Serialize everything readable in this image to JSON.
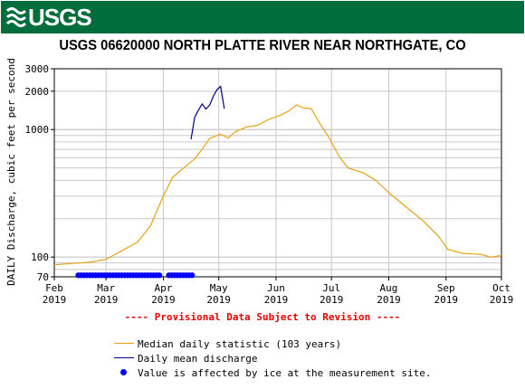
{
  "header": {
    "agency": "USGS"
  },
  "colors": {
    "banner": "#006d3c",
    "median": "#e8a317",
    "daily": "#00008b",
    "ice": "#0000ff",
    "notice": "#e60000"
  },
  "chart_data": {
    "type": "line",
    "title": "USGS 06620000 NORTH PLATTE RIVER NEAR NORTHGATE, CO",
    "ylabel": "DAILY Discharge, cubic feet per second",
    "yscale": "log",
    "ylim": [
      70,
      3000
    ],
    "yticks": [
      "3000",
      "2000",
      "1000",
      "100",
      "70"
    ],
    "xlim": [
      "2019-02-01",
      "2019-10-01"
    ],
    "xticks": [
      {
        "month": "Feb",
        "year": "2019"
      },
      {
        "month": "Mar",
        "year": "2019"
      },
      {
        "month": "Apr",
        "year": "2019"
      },
      {
        "month": "May",
        "year": "2019"
      },
      {
        "month": "Jun",
        "year": "2019"
      },
      {
        "month": "Jul",
        "year": "2019"
      },
      {
        "month": "Aug",
        "year": "2019"
      },
      {
        "month": "Sep",
        "year": "2019"
      },
      {
        "month": "Oct",
        "year": "2019"
      }
    ],
    "grid": true,
    "series": [
      {
        "name": "Median daily statistic (103 years)",
        "x": [
          "2019-02-01",
          "2019-02-10",
          "2019-02-20",
          "2019-03-01",
          "2019-03-10",
          "2019-03-18",
          "2019-03-25",
          "2019-04-01",
          "2019-04-06",
          "2019-04-12",
          "2019-04-18",
          "2019-04-22",
          "2019-04-26",
          "2019-05-02",
          "2019-05-06",
          "2019-05-10",
          "2019-05-16",
          "2019-05-22",
          "2019-05-28",
          "2019-06-03",
          "2019-06-08",
          "2019-06-12",
          "2019-06-16",
          "2019-06-20",
          "2019-06-25",
          "2019-06-30",
          "2019-07-05",
          "2019-07-10",
          "2019-07-18",
          "2019-07-25",
          "2019-08-01",
          "2019-08-10",
          "2019-08-20",
          "2019-08-28",
          "2019-09-02",
          "2019-09-10",
          "2019-09-20",
          "2019-09-25",
          "2019-10-01"
        ],
        "values": [
          87,
          89,
          91,
          96,
          113,
          131,
          175,
          300,
          420,
          500,
          590,
          700,
          850,
          920,
          860,
          960,
          1050,
          1080,
          1200,
          1290,
          1400,
          1560,
          1480,
          1460,
          1100,
          850,
          620,
          500,
          460,
          400,
          320,
          250,
          190,
          145,
          115,
          107,
          105,
          100,
          103
        ]
      },
      {
        "name": "Daily mean discharge",
        "x": [
          "2019-04-16",
          "2019-04-18",
          "2019-04-20",
          "2019-04-22",
          "2019-04-24",
          "2019-04-26",
          "2019-04-28",
          "2019-04-30",
          "2019-05-02",
          "2019-05-04"
        ],
        "values": [
          840,
          1250,
          1420,
          1590,
          1450,
          1550,
          1820,
          2050,
          2180,
          1460
        ]
      }
    ],
    "ice_affected": {
      "name": "Value is affected by ice at the measurement site.",
      "value": 72,
      "ranges": [
        [
          "2019-02-14",
          "2019-03-30"
        ],
        [
          "2019-04-04",
          "2019-04-17"
        ]
      ]
    },
    "annotation": "---- Provisional Data Subject to Revision ----"
  }
}
